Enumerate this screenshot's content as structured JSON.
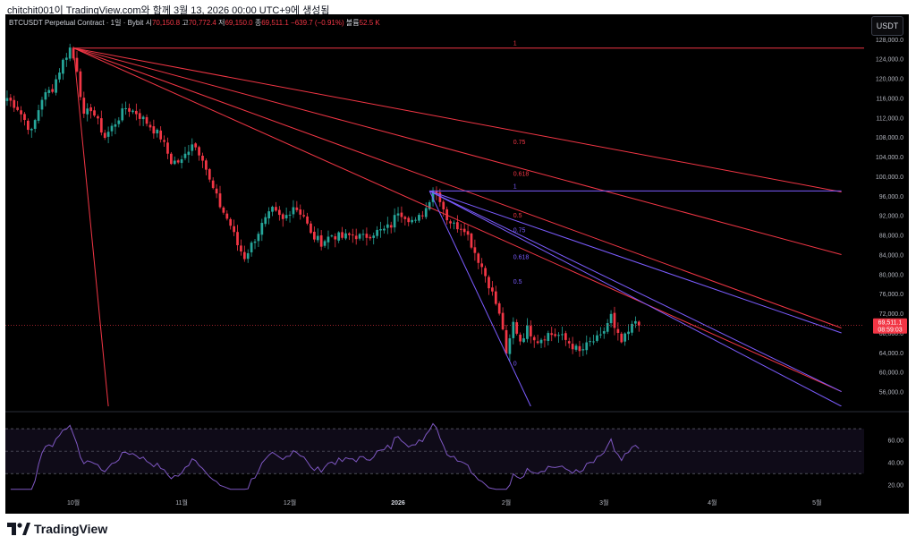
{
  "caption": "chitchit001이 TradingView.com와 함께 3월 13, 2026 00:00 UTC+9에 생성됨",
  "header": {
    "symbol": "BTCUSDT Perpetual Contract · 1일 · Bybit",
    "o_lbl": "시",
    "o": "70,150.8",
    "h_lbl": "고",
    "h": "70,772.4",
    "l_lbl": "저",
    "l": "69,150.0",
    "c_lbl": "종",
    "c": "69,511.1",
    "chg": "−639.7 (−0.91%)",
    "v_lbl": "볼륨",
    "v": "52.5 K"
  },
  "currency_button": "USDT",
  "price_tag": {
    "price": "69,511.1",
    "countdown": "08:59:03"
  },
  "brand": "TradingView",
  "colors": {
    "up": "#26a69a",
    "down": "#f23645",
    "fan_red": "#f23645",
    "fan_blue": "#7b5cff",
    "rsi": "#7e57c2",
    "bg": "#000000"
  },
  "chart_data": {
    "type": "candlestick",
    "y_ticks": [
      128000,
      124000,
      120000,
      116000,
      112000,
      108000,
      104000,
      100000,
      96000,
      92000,
      88000,
      84000,
      80000,
      76000,
      72000,
      68000,
      64000,
      60000,
      56000
    ],
    "y_tick_labels": [
      "128,000.0",
      "124,000.0",
      "120,000.0",
      "116,000.0",
      "112,000.0",
      "108,000.0",
      "104,000.0",
      "100,000.0",
      "96,000.0",
      "92,000.0",
      "88,000.0",
      "84,000.0",
      "80,000.0",
      "76,000.0",
      "72,000.0",
      "68,000.0",
      "64,000.0",
      "60,000.0",
      "56,000.0"
    ],
    "ylim": [
      53000,
      129800
    ],
    "x_labels": [
      "10월",
      "11월",
      "12월",
      "2026",
      "2월",
      "3월",
      "4월",
      "5월"
    ],
    "x_label_index": [
      19,
      50,
      81,
      112,
      143,
      171,
      202,
      232
    ],
    "n_bars": 246,
    "close_path": [
      [
        0,
        116000
      ],
      [
        3,
        114000
      ],
      [
        7,
        109000
      ],
      [
        10,
        116000
      ],
      [
        13,
        118000
      ],
      [
        16,
        123500
      ],
      [
        18,
        126200
      ],
      [
        20,
        122000
      ],
      [
        22,
        112000
      ],
      [
        24,
        114000
      ],
      [
        28,
        108000
      ],
      [
        31,
        111000
      ],
      [
        34,
        114000
      ],
      [
        37,
        113000
      ],
      [
        40,
        111000
      ],
      [
        44,
        108000
      ],
      [
        47,
        103000
      ],
      [
        50,
        103000
      ],
      [
        53,
        107000
      ],
      [
        56,
        104000
      ],
      [
        58,
        99000
      ],
      [
        61,
        94000
      ],
      [
        64,
        90000
      ],
      [
        66,
        86000
      ],
      [
        68,
        83500
      ],
      [
        70,
        86000
      ],
      [
        73,
        90000
      ],
      [
        76,
        93000
      ],
      [
        79,
        91000
      ],
      [
        82,
        94000
      ],
      [
        85,
        92000
      ],
      [
        87,
        88000
      ],
      [
        90,
        86500
      ],
      [
        93,
        88000
      ],
      [
        96,
        87500
      ],
      [
        99,
        88000
      ],
      [
        102,
        87500
      ],
      [
        105,
        88500
      ],
      [
        108,
        89000
      ],
      [
        110,
        90000
      ],
      [
        112,
        93000
      ],
      [
        115,
        91500
      ],
      [
        117,
        90500
      ],
      [
        120,
        93500
      ],
      [
        122,
        97500
      ],
      [
        124,
        95500
      ],
      [
        126,
        91500
      ],
      [
        128,
        90000
      ],
      [
        131,
        89500
      ],
      [
        134,
        84500
      ],
      [
        136,
        81500
      ],
      [
        138,
        78000
      ],
      [
        140,
        74000
      ],
      [
        142,
        69000
      ],
      [
        143,
        63000
      ],
      [
        145,
        70000
      ],
      [
        147,
        66500
      ],
      [
        149,
        68800
      ],
      [
        152,
        66500
      ],
      [
        155,
        67800
      ],
      [
        158,
        67500
      ],
      [
        161,
        66000
      ],
      [
        164,
        64000
      ],
      [
        167,
        66000
      ],
      [
        170,
        67000
      ],
      [
        173,
        71500
      ],
      [
        174,
        68500
      ],
      [
        176,
        66000
      ],
      [
        178,
        68000
      ],
      [
        180,
        70500
      ],
      [
        181,
        69511
      ]
    ],
    "fan_red": {
      "anchor": [
        19,
        126200
      ],
      "targets": [
        [
          29,
          53000
        ],
        [
          239,
          84000
        ],
        [
          239,
          69000
        ],
        [
          239,
          56000
        ],
        [
          239,
          96800
        ]
      ],
      "levels": [
        "1",
        "0.75",
        "0.618",
        "0.5",
        "0"
      ],
      "horizontal": 126200
    },
    "fan_blue": {
      "anchor": [
        121,
        97000
      ],
      "targets": [
        [
          150,
          53000
        ],
        [
          239,
          97000
        ],
        [
          239,
          68000
        ],
        [
          239,
          56000
        ],
        [
          239,
          53000
        ]
      ],
      "levels": [
        "1",
        "0.75",
        "0.618",
        "0.5",
        "0"
      ]
    },
    "fib_labels": [
      {
        "text": "1",
        "i": 145,
        "p": 126200,
        "c": "red"
      },
      {
        "text": "0.75",
        "i": 145,
        "p": 106000,
        "c": "red"
      },
      {
        "text": "0.618",
        "i": 145,
        "p": 99500,
        "c": "red"
      },
      {
        "text": "0.5",
        "i": 145,
        "p": 91000,
        "c": "red"
      },
      {
        "text": "1",
        "i": 145,
        "p": 97000,
        "c": "blue"
      },
      {
        "text": "0.75",
        "i": 145,
        "p": 88000,
        "c": "blue"
      },
      {
        "text": "0.618",
        "i": 145,
        "p": 82500,
        "c": "blue"
      },
      {
        "text": "0.5",
        "i": 145,
        "p": 77500,
        "c": "blue"
      },
      {
        "text": "0",
        "i": 145,
        "p": 60800,
        "c": "blue"
      }
    ],
    "rsi": {
      "ticks": [
        80,
        60,
        40,
        20
      ],
      "tick_labels": [
        "60.00",
        "40.00",
        "20.00"
      ],
      "upper": 70,
      "mid": 50,
      "lower": 30,
      "ylim": [
        15,
        82
      ]
    }
  }
}
